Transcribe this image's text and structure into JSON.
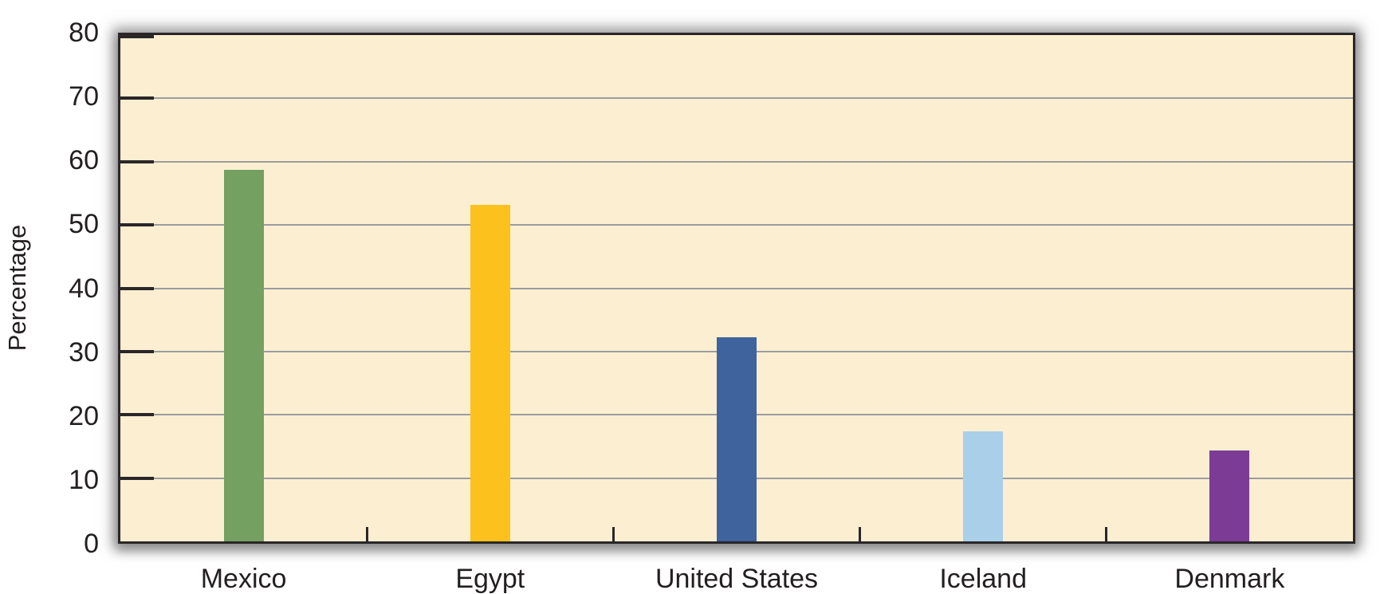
{
  "chart_data": {
    "type": "bar",
    "title": "",
    "xlabel": "",
    "ylabel": "Percentage",
    "categories": [
      "Mexico",
      "Egypt",
      "United States",
      "Iceland",
      "Denmark"
    ],
    "values": [
      58.7,
      53.2,
      32.3,
      17.4,
      14.4
    ],
    "bar_colors": [
      "#74A061",
      "#FCC11D",
      "#3E639D",
      "#A9CFE9",
      "#7C3C95"
    ],
    "ylim": [
      0,
      80
    ],
    "yticks": [
      0,
      10,
      20,
      30,
      40,
      50,
      60,
      70,
      80
    ],
    "grid": true,
    "legend_position": "none",
    "plot_background": "#FCEFD1",
    "gridline_color": "#9C9CA0",
    "axis_color": "#2A2628",
    "text_color": "#231F20",
    "page_background": "#FFFFFF"
  }
}
